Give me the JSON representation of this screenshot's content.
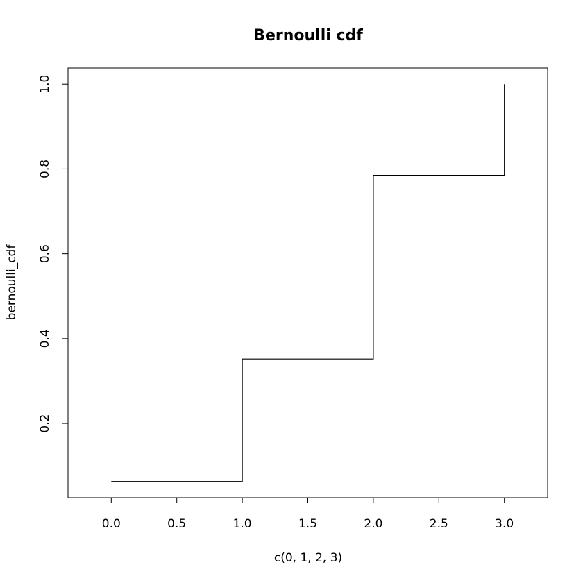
{
  "chart_data": {
    "type": "line",
    "style": "step",
    "title": "Bernoulli cdf",
    "xlabel": "c(0, 1, 2, 3)",
    "ylabel": "bernoulli_cdf",
    "x": [
      0,
      1,
      2,
      3
    ],
    "y": [
      0.063,
      0.352,
      0.785,
      1.0
    ],
    "xlim": [
      -0.33,
      3.33
    ],
    "ylim": [
      0.025,
      1.038
    ],
    "xticks": [
      0.0,
      0.5,
      1.0,
      1.5,
      2.0,
      2.5,
      3.0
    ],
    "xtick_labels": [
      "0.0",
      "0.5",
      "1.0",
      "1.5",
      "2.0",
      "2.5",
      "3.0"
    ],
    "yticks": [
      0.2,
      0.4,
      0.6,
      0.8,
      1.0
    ],
    "ytick_labels": [
      "0.2",
      "0.4",
      "0.6",
      "0.8",
      "1.0"
    ],
    "grid": false,
    "line_color": "#000000"
  }
}
